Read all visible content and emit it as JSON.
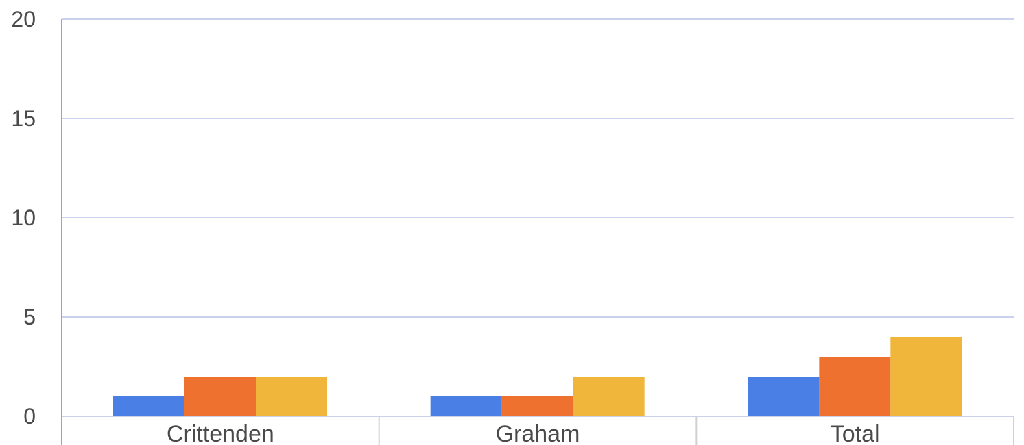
{
  "chart_data": {
    "type": "bar",
    "title": "",
    "xlabel": "",
    "ylabel": "",
    "categories": [
      "Crittenden",
      "Graham",
      "Total"
    ],
    "series": [
      {
        "values": [
          1,
          1,
          2
        ],
        "color": "#4a7fe6"
      },
      {
        "values": [
          2,
          1,
          3
        ],
        "color": "#ee7130"
      },
      {
        "values": [
          2,
          2,
          4
        ],
        "color": "#f0b63c"
      }
    ],
    "ylim": [
      0,
      20
    ],
    "yticks": [
      0,
      5,
      10,
      15,
      20
    ],
    "grid": true,
    "legend": "none",
    "colors": {
      "gridline": "#c9d2ea",
      "axis": "#8fa2e8",
      "separator": "#d0d0d0",
      "text": "#4a4a4a"
    }
  }
}
